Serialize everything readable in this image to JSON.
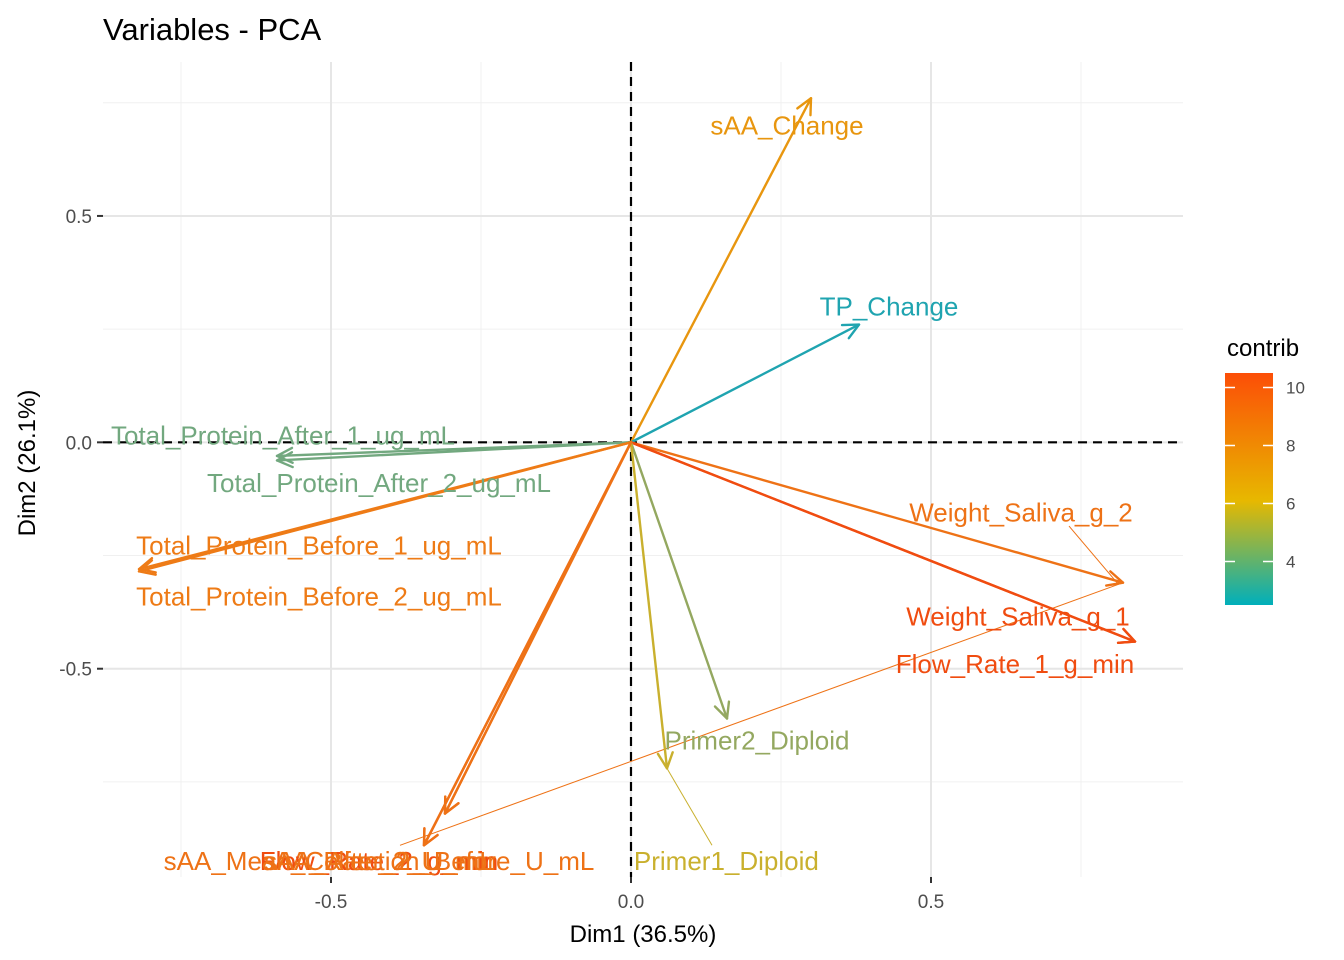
{
  "chart_data": {
    "type": "scatter",
    "title": "Variables - PCA",
    "xlabel": "Dim1 (36.5%)",
    "ylabel": "Dim2 (26.1%)",
    "xlim": [
      -0.88,
      0.92
    ],
    "ylim": [
      -0.96,
      0.84
    ],
    "x_ticks": [
      -0.5,
      0.0,
      0.5
    ],
    "x_tick_labels": [
      "-0.5",
      "0.0",
      "0.5"
    ],
    "y_ticks": [
      0.5,
      0.0,
      -0.5
    ],
    "y_tick_labels": [
      "0.5",
      "0.0",
      "-0.5"
    ],
    "grid": true,
    "legend": {
      "title": "contrib",
      "placement": "right",
      "min": 2.5,
      "max": 10.5,
      "ticks": [
        4,
        6,
        8,
        10
      ],
      "tick_labels": [
        "4",
        "6",
        "8",
        "10"
      ],
      "colors": [
        "#00AFBB",
        "#E7B800",
        "#FC4E07"
      ]
    },
    "variables": [
      {
        "name": "sAA_Change",
        "x": 0.3,
        "y": 0.76,
        "color": "#E8960F",
        "label_x": 0.26,
        "label_y": 0.7
      },
      {
        "name": "TP_Change",
        "x": 0.38,
        "y": 0.26,
        "color": "#1FA4B0",
        "label_x": 0.43,
        "label_y": 0.3
      },
      {
        "name": "Total_Protein_After_1_ug_mL",
        "x": -0.59,
        "y": -0.03,
        "color": "#72A87F",
        "label_x": -0.58,
        "label_y": 0.015
      },
      {
        "name": "Total_Protein_After_2_ug_mL",
        "x": -0.59,
        "y": -0.04,
        "color": "#72A87F",
        "label_x": -0.42,
        "label_y": -0.09
      },
      {
        "name": "Total_Protein_Before_1_ug_mL",
        "x": -0.82,
        "y": -0.28,
        "color": "#EE7B16",
        "label_x": -0.52,
        "label_y": -0.228
      },
      {
        "name": "Total_Protein_Before_2_ug_mL",
        "x": -0.82,
        "y": -0.285,
        "color": "#EE7B16",
        "label_x": -0.52,
        "label_y": -0.34
      },
      {
        "name": "Weight_Saliva_g_2",
        "x": 0.82,
        "y": -0.31,
        "color": "#EE7216",
        "label_x": 0.65,
        "label_y": -0.155
      },
      {
        "name": "Weight_Saliva_g_1",
        "x": 0.84,
        "y": -0.44,
        "color": "#F04C10",
        "label_x": 0.645,
        "label_y": -0.385
      },
      {
        "name": "Flow_Rate_1_g_min",
        "x": 0.84,
        "y": -0.44,
        "color": "#F04C10",
        "label_x": 0.64,
        "label_y": -0.49
      },
      {
        "name": "Primer2_Diploid",
        "x": 0.16,
        "y": -0.61,
        "color": "#94A860",
        "label_x": 0.21,
        "label_y": -0.658
      },
      {
        "name": "Primer1_Diploid",
        "x": 0.06,
        "y": -0.72,
        "color": "#C9B02E",
        "label_x": 0.159,
        "label_y": -0.925
      },
      {
        "name": "sAA_Rate_2_U_min",
        "x": -0.31,
        "y": -0.82,
        "color": "#EE7216",
        "label_x": -0.42,
        "label_y": -0.925
      },
      {
        "name": "Flow_Rate_2_g_min",
        "x": -0.345,
        "y": -0.89,
        "color": "#F04C10",
        "label_x": -0.42,
        "label_y": -0.925
      },
      {
        "name": "sAA_After_2_U_mL",
        "x": -0.345,
        "y": -0.89,
        "color": "#EE7216",
        "label_x": -0.42,
        "label_y": -0.925
      },
      {
        "name": "sAA_Mean_Collection_Before_U_mL",
        "x": -0.31,
        "y": -0.82,
        "color": "#EE7216",
        "label_x": -0.42,
        "label_y": -0.925
      }
    ],
    "repel_lines": [
      {
        "color": "#EE7216",
        "x1": 0.81,
        "y1": -0.31,
        "x2": 0.73,
        "y2": -0.185,
        "width": 1.0
      },
      {
        "color": "#EE7216",
        "x1": 0.82,
        "y1": -0.31,
        "x2": -0.385,
        "y2": -0.89,
        "width": 1.0
      },
      {
        "color": "#C9B02E",
        "x1": 0.06,
        "y1": -0.72,
        "x2": 0.135,
        "y2": -0.89,
        "width": 1.0
      }
    ]
  }
}
